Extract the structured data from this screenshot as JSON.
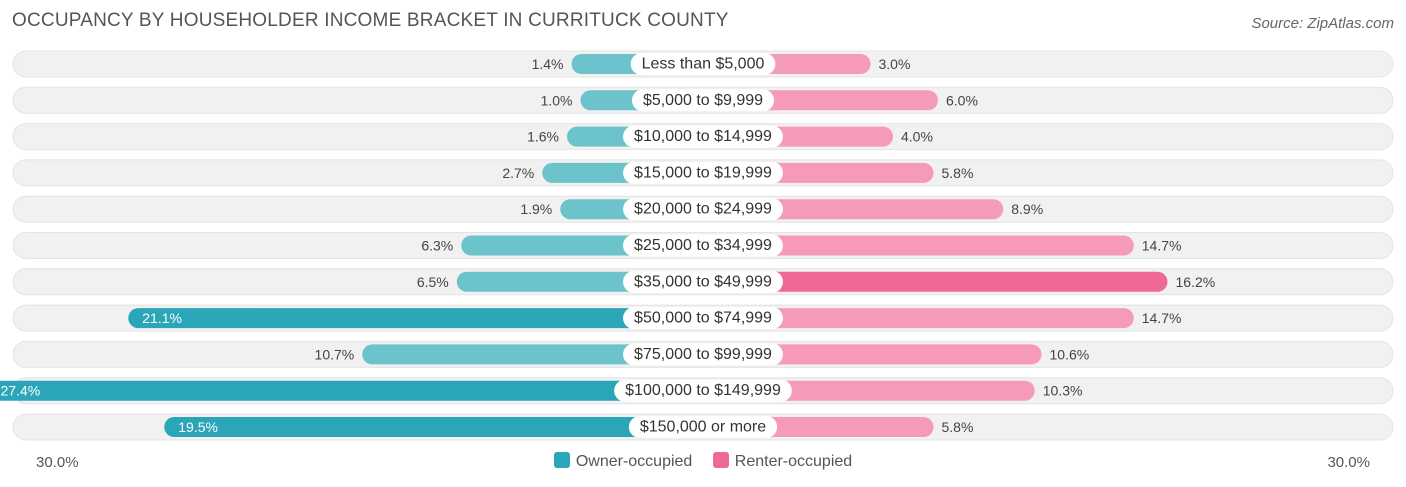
{
  "header": {
    "title": "OCCUPANCY BY HOUSEHOLDER INCOME BRACKET IN CURRITUCK COUNTY",
    "source": "Source: ZipAtlas.com"
  },
  "axis": {
    "left_label": "30.0%",
    "right_label": "30.0%"
  },
  "legend": {
    "owner_label": "Owner-occupied",
    "renter_label": "Renter-occupied"
  },
  "colors": {
    "owner": "#6cc3cc",
    "owner_dark": "#2ba6b8",
    "renter": "#f59ab7",
    "renter_dark": "#f06895",
    "track": "#f1f1f1"
  },
  "chart_data": {
    "type": "bar",
    "title": "OCCUPANCY BY HOUSEHOLDER INCOME BRACKET IN CURRITUCK COUNTY",
    "orientation": "horizontal-diverging",
    "xlim": [
      -30,
      30
    ],
    "categories": [
      "Less than $5,000",
      "$5,000 to $9,999",
      "$10,000 to $14,999",
      "$15,000 to $19,999",
      "$20,000 to $24,999",
      "$25,000 to $34,999",
      "$35,000 to $49,999",
      "$50,000 to $74,999",
      "$75,000 to $99,999",
      "$100,000 to $149,999",
      "$150,000 or more"
    ],
    "series": [
      {
        "name": "Owner-occupied",
        "values": [
          1.4,
          1.0,
          1.6,
          2.7,
          1.9,
          6.3,
          6.5,
          21.1,
          10.7,
          27.4,
          19.5
        ],
        "labels": [
          "1.4%",
          "1.0%",
          "1.6%",
          "2.7%",
          "1.9%",
          "6.3%",
          "6.5%",
          "21.1%",
          "10.7%",
          "27.4%",
          "19.5%"
        ]
      },
      {
        "name": "Renter-occupied",
        "values": [
          3.0,
          6.0,
          4.0,
          5.8,
          8.9,
          14.7,
          16.2,
          14.7,
          10.6,
          10.3,
          5.8
        ],
        "labels": [
          "3.0%",
          "6.0%",
          "4.0%",
          "5.8%",
          "8.9%",
          "14.7%",
          "16.2%",
          "14.7%",
          "10.6%",
          "10.3%",
          "5.8%"
        ]
      }
    ],
    "legend_position": "bottom-center"
  }
}
